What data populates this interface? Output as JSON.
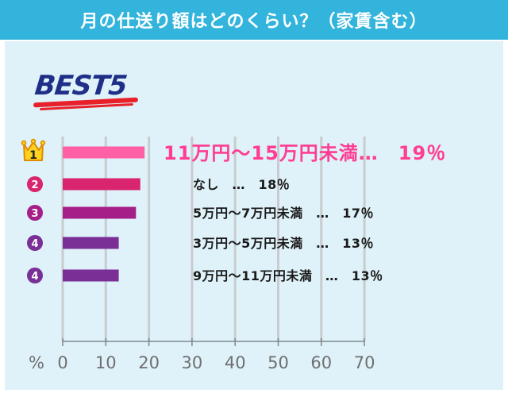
{
  "header": {
    "title": "月の仕送り額はどのくらい？（家賃含む）"
  },
  "badge": {
    "text": "BEST5"
  },
  "colors": {
    "header_bg": "#33b4dc",
    "plot_bg": "#dff2f9",
    "grid": "#c8ccce",
    "rank1": "#ff5fa5",
    "rank2": "#d9246e",
    "rank3": "#a51f88",
    "rank4": "#7a2f97",
    "rank5": "#7a2f97",
    "label_highlight": "#ff3d93",
    "label_normal": "#1a1a1a"
  },
  "chart_data": {
    "type": "bar",
    "orientation": "horizontal",
    "ranks": [
      "1",
      "2",
      "3",
      "4",
      "4"
    ],
    "categories": [
      "11万円～15万円未満",
      "なし",
      "5万円～7万円未満",
      "3万円～5万円未満",
      "9万円～11万円未満"
    ],
    "values": [
      19,
      18,
      17,
      13,
      13
    ],
    "labels": [
      "11万円～15万円未満…　19％",
      "なし　…　18％",
      "5万円～7万円未満　…　17％",
      "3万円～5万円未満　…　13％",
      "9万円～11万円未満　…　13％"
    ],
    "xunit": "%",
    "xlim": [
      0,
      70
    ],
    "xticks": [
      0,
      10,
      20,
      30,
      40,
      50,
      60,
      70
    ],
    "grid": true
  }
}
